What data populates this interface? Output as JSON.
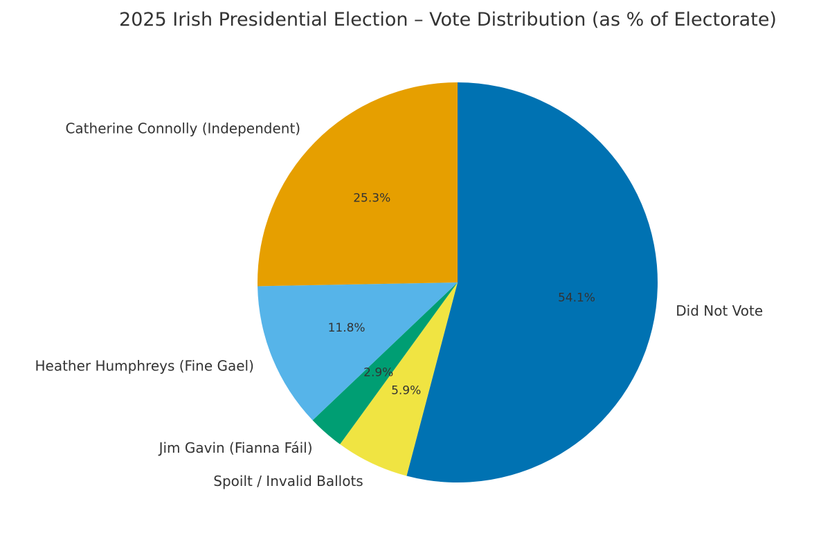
{
  "chart_data": {
    "type": "pie",
    "title": "2025 Irish Presidential Election – Vote Distribution (as % of Electorate)",
    "start_angle_deg": 90,
    "direction": "clockwise",
    "slices": [
      {
        "label": "Did Not Vote",
        "value": 54.1,
        "pct_label": "54.1%",
        "color": "#0072B2"
      },
      {
        "label": "Spoilt / Invalid Ballots",
        "value": 5.9,
        "pct_label": "5.9%",
        "color": "#F0E442"
      },
      {
        "label": "Jim Gavin (Fianna Fáil)",
        "value": 2.9,
        "pct_label": "2.9%",
        "color": "#009E73"
      },
      {
        "label": "Heather Humphreys (Fine Gael)",
        "value": 11.8,
        "pct_label": "11.8%",
        "color": "#56B4E9"
      },
      {
        "label": "Catherine Connolly (Independent)",
        "value": 25.3,
        "pct_label": "25.3%",
        "color": "#E69F00"
      }
    ]
  }
}
